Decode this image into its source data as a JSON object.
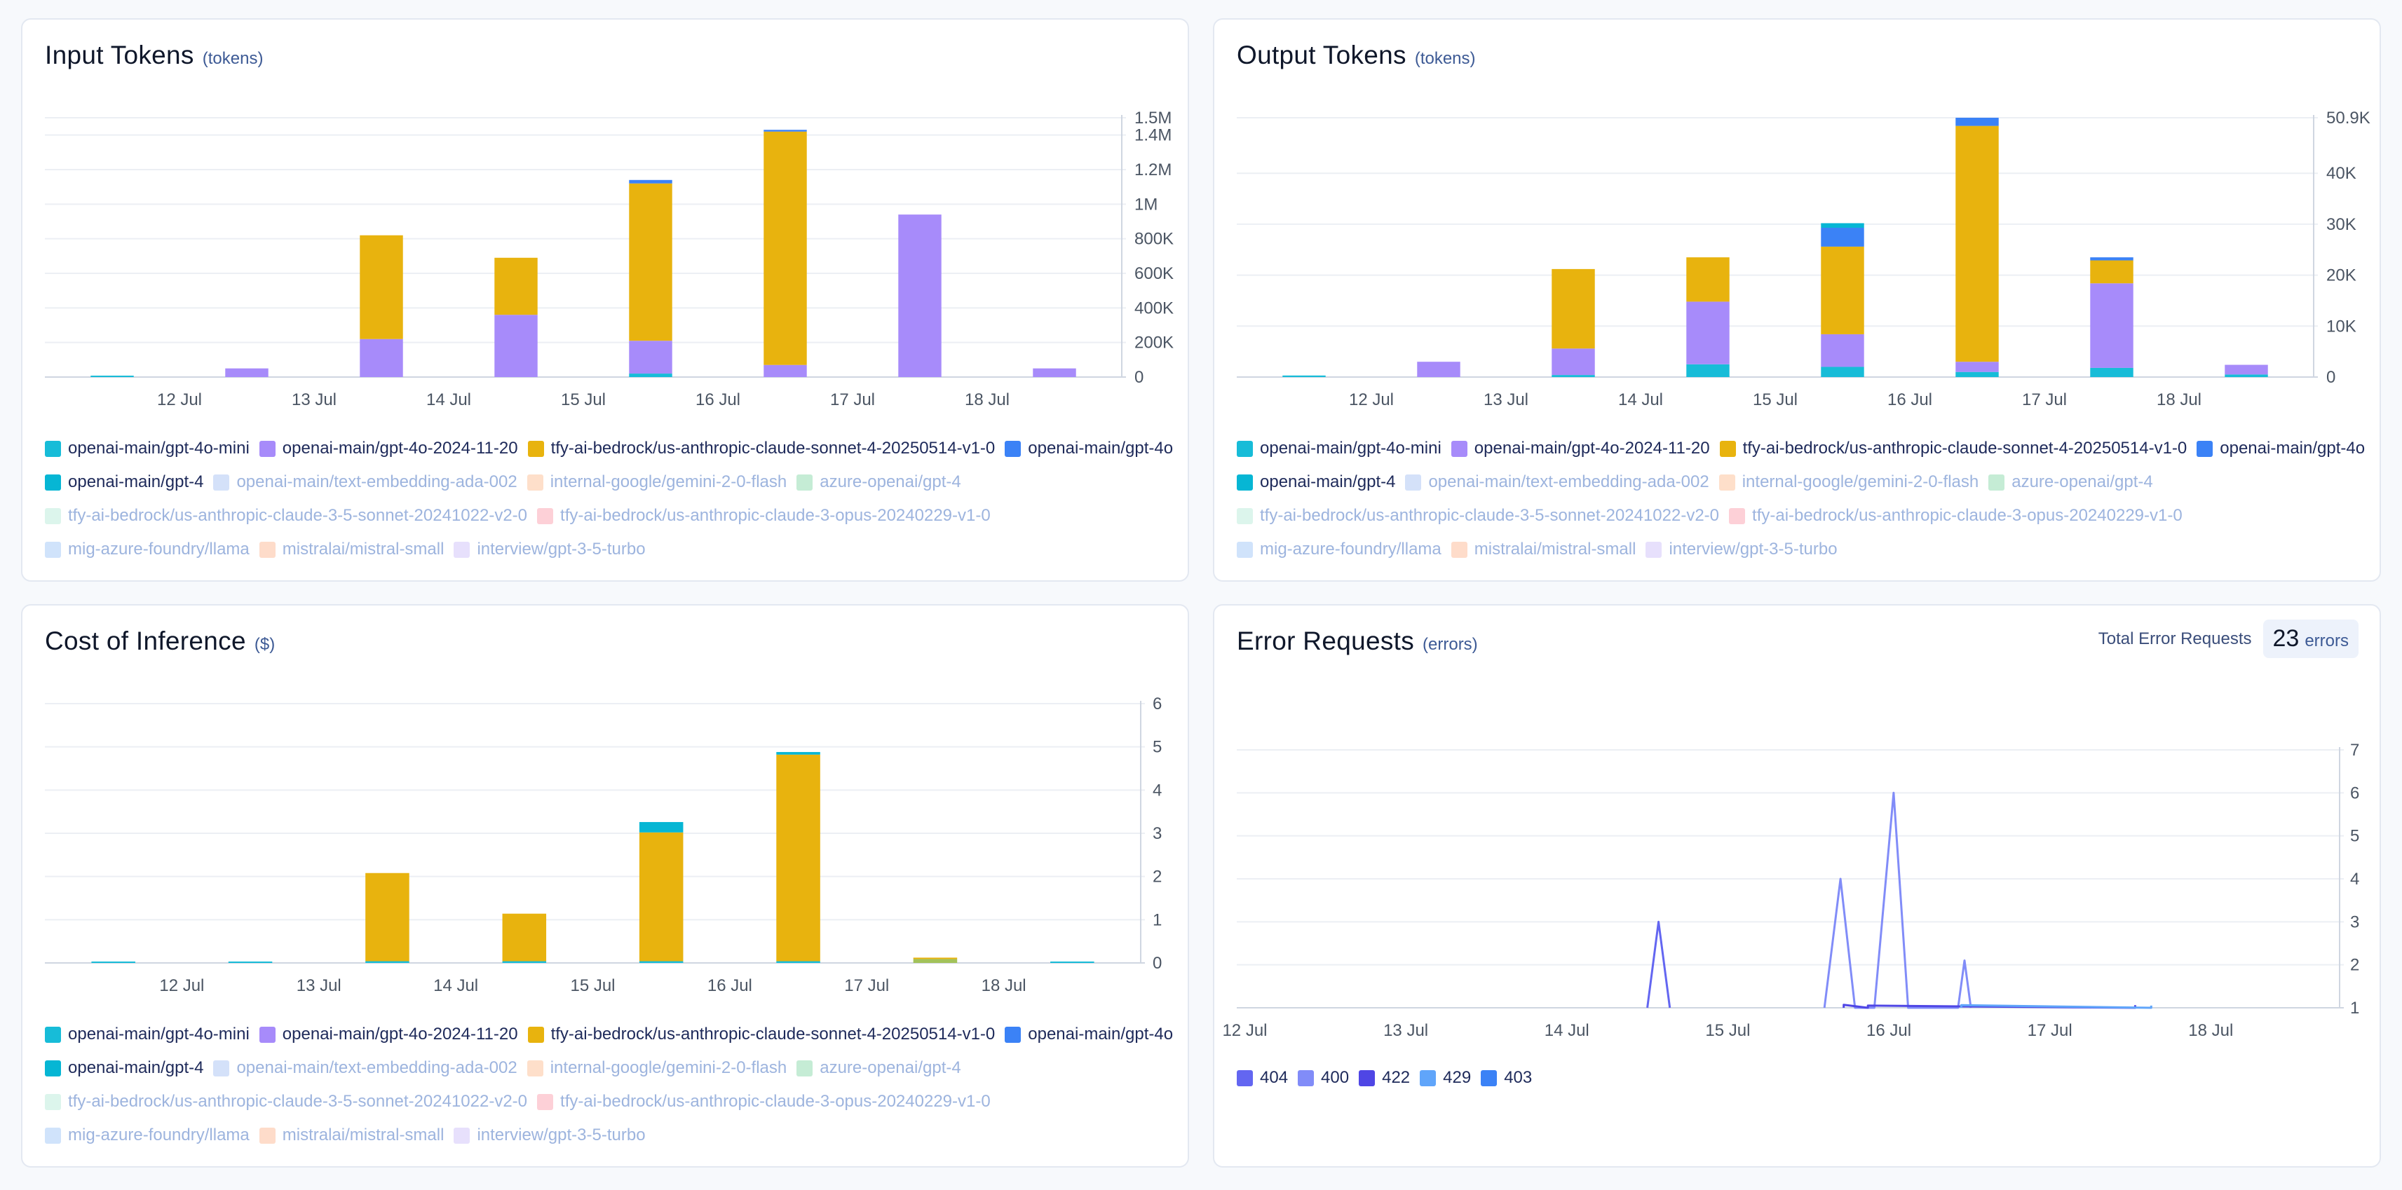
{
  "colors": {
    "cyan": "#17bcd8",
    "purple": "#a78bfa",
    "gold": "#e8b30e",
    "blue": "#3b82f6",
    "teal": "#06b6d4",
    "lime": "#a3c25a",
    "grid": "#eceff4",
    "axis": "#cfd6e1"
  },
  "legend_models": [
    {
      "label": "openai-main/gpt-4o-mini",
      "color": "#17bcd8",
      "active": true
    },
    {
      "label": "openai-main/gpt-4o-2024-11-20",
      "color": "#a78bfa",
      "active": true
    },
    {
      "label": "tfy-ai-bedrock/us-anthropic-claude-sonnet-4-20250514-v1-0",
      "color": "#e8b30e",
      "active": true
    },
    {
      "label": "openai-main/gpt-4o",
      "color": "#3b82f6",
      "active": true
    },
    {
      "label": "openai-main/gpt-4",
      "color": "#06b6d4",
      "active": true
    },
    {
      "label": "openai-main/text-embedding-ada-002",
      "color": "#93b4f0",
      "active": false
    },
    {
      "label": "internal-google/gemini-2-0-flash",
      "color": "#fdae7b",
      "active": false
    },
    {
      "label": "azure-openai/gpt-4",
      "color": "#6fcf97",
      "active": false
    },
    {
      "label": "tfy-ai-bedrock/us-anthropic-claude-3-5-sonnet-20241022-v2-0",
      "color": "#a8e6cf",
      "active": false
    },
    {
      "label": "tfy-ai-bedrock/us-anthropic-claude-3-opus-20240229-v1-0",
      "color": "#fb8a9a",
      "active": false
    },
    {
      "label": "mig-azure-foundry/llama",
      "color": "#8ab8f5",
      "active": false
    },
    {
      "label": "mistralai/mistral-small",
      "color": "#fca87a",
      "active": false
    },
    {
      "label": "interview/gpt-3-5-turbo",
      "color": "#c4b2f7",
      "active": false
    }
  ],
  "legend_errors": [
    {
      "label": "404",
      "color": "#6366f1",
      "active": true
    },
    {
      "label": "400",
      "color": "#818cf8",
      "active": true
    },
    {
      "label": "422",
      "color": "#4f46e5",
      "active": true
    },
    {
      "label": "429",
      "color": "#60a5fa",
      "active": true
    },
    {
      "label": "403",
      "color": "#3b82f6",
      "active": true
    }
  ],
  "cards": {
    "input": {
      "title": "Input Tokens",
      "unit": "(tokens)"
    },
    "output": {
      "title": "Output Tokens",
      "unit": "(tokens)"
    },
    "cost": {
      "title": "Cost of Inference",
      "unit": "($)"
    },
    "errors": {
      "title": "Error Requests",
      "unit": "(errors)",
      "total_label": "Total Error Requests",
      "total_value": "23",
      "total_unit": "errors"
    }
  },
  "chart_data": [
    {
      "id": "input",
      "type": "bar",
      "stacked": true,
      "title": "Input Tokens",
      "unit": "(tokens)",
      "x_ticks": [
        "12 Jul",
        "13 Jul",
        "14 Jul",
        "15 Jul",
        "16 Jul",
        "17 Jul",
        "18 Jul"
      ],
      "y_ticks": [
        {
          "v": 0,
          "label": "0"
        },
        {
          "v": 200000,
          "label": "200K"
        },
        {
          "v": 400000,
          "label": "400K"
        },
        {
          "v": 600000,
          "label": "600K"
        },
        {
          "v": 800000,
          "label": "800K"
        },
        {
          "v": 1000000,
          "label": "1M"
        },
        {
          "v": 1200000,
          "label": "1.2M"
        },
        {
          "v": 1400000,
          "label": "1.4M"
        },
        {
          "v": 1500000,
          "label": "1.5M"
        }
      ],
      "ylim": [
        0,
        1500000
      ],
      "bars": [
        {
          "x": 11.5,
          "segments": [
            {
              "color": "#17bcd8",
              "value": 6000
            }
          ]
        },
        {
          "x": 12.5,
          "segments": [
            {
              "color": "#a78bfa",
              "value": 50000
            }
          ]
        },
        {
          "x": 13.5,
          "segments": [
            {
              "color": "#a78bfa",
              "value": 220000
            },
            {
              "color": "#e8b30e",
              "value": 600000
            }
          ]
        },
        {
          "x": 14.5,
          "segments": [
            {
              "color": "#a78bfa",
              "value": 360000
            },
            {
              "color": "#e8b30e",
              "value": 330000
            }
          ]
        },
        {
          "x": 15.5,
          "segments": [
            {
              "color": "#17bcd8",
              "value": 20000
            },
            {
              "color": "#a78bfa",
              "value": 190000
            },
            {
              "color": "#e8b30e",
              "value": 910000
            },
            {
              "color": "#3b82f6",
              "value": 20000
            }
          ]
        },
        {
          "x": 16.5,
          "segments": [
            {
              "color": "#a78bfa",
              "value": 70000
            },
            {
              "color": "#e8b30e",
              "value": 1350000
            },
            {
              "color": "#3b82f6",
              "value": 10000
            }
          ]
        },
        {
          "x": 17.5,
          "segments": [
            {
              "color": "#a78bfa",
              "value": 940000
            }
          ]
        },
        {
          "x": 18.5,
          "segments": [
            {
              "color": "#a78bfa",
              "value": 50000
            }
          ]
        }
      ]
    },
    {
      "id": "output",
      "type": "bar",
      "stacked": true,
      "title": "Output Tokens",
      "unit": "(tokens)",
      "x_ticks": [
        "12 Jul",
        "13 Jul",
        "14 Jul",
        "15 Jul",
        "16 Jul",
        "17 Jul",
        "18 Jul"
      ],
      "y_ticks": [
        {
          "v": 0,
          "label": "0"
        },
        {
          "v": 10000,
          "label": "10K"
        },
        {
          "v": 20000,
          "label": "20K"
        },
        {
          "v": 30000,
          "label": "30K"
        },
        {
          "v": 40000,
          "label": "40K"
        },
        {
          "v": 50900,
          "label": "50.9K"
        }
      ],
      "ylim": [
        0,
        50900
      ],
      "bars": [
        {
          "x": 11.5,
          "segments": [
            {
              "color": "#17bcd8",
              "value": 300
            }
          ]
        },
        {
          "x": 12.5,
          "segments": [
            {
              "color": "#a78bfa",
              "value": 3000
            }
          ]
        },
        {
          "x": 13.5,
          "segments": [
            {
              "color": "#17bcd8",
              "value": 400
            },
            {
              "color": "#a78bfa",
              "value": 5200
            },
            {
              "color": "#e8b30e",
              "value": 15600
            }
          ]
        },
        {
          "x": 14.5,
          "segments": [
            {
              "color": "#17bcd8",
              "value": 2500
            },
            {
              "color": "#a78bfa",
              "value": 12300
            },
            {
              "color": "#e8b30e",
              "value": 8700
            }
          ]
        },
        {
          "x": 15.5,
          "segments": [
            {
              "color": "#17bcd8",
              "value": 2000
            },
            {
              "color": "#a78bfa",
              "value": 6400
            },
            {
              "color": "#e8b30e",
              "value": 17200
            },
            {
              "color": "#3b82f6",
              "value": 3700
            },
            {
              "color": "#06b6d4",
              "value": 900
            }
          ]
        },
        {
          "x": 16.5,
          "segments": [
            {
              "color": "#17bcd8",
              "value": 1000
            },
            {
              "color": "#a78bfa",
              "value": 2000
            },
            {
              "color": "#e8b30e",
              "value": 46300
            },
            {
              "color": "#3b82f6",
              "value": 1600
            }
          ]
        },
        {
          "x": 17.5,
          "segments": [
            {
              "color": "#17bcd8",
              "value": 1800
            },
            {
              "color": "#a78bfa",
              "value": 16600
            },
            {
              "color": "#e8b30e",
              "value": 4500
            },
            {
              "color": "#3b82f6",
              "value": 600
            }
          ]
        },
        {
          "x": 18.5,
          "segments": [
            {
              "color": "#17bcd8",
              "value": 500
            },
            {
              "color": "#a78bfa",
              "value": 1900
            }
          ]
        }
      ]
    },
    {
      "id": "cost",
      "type": "bar",
      "stacked": true,
      "title": "Cost of Inference",
      "unit": "($)",
      "x_ticks": [
        "12 Jul",
        "13 Jul",
        "14 Jul",
        "15 Jul",
        "16 Jul",
        "17 Jul",
        "18 Jul"
      ],
      "y_ticks": [
        {
          "v": 0,
          "label": "0"
        },
        {
          "v": 1,
          "label": "1"
        },
        {
          "v": 2,
          "label": "2"
        },
        {
          "v": 3,
          "label": "3"
        },
        {
          "v": 4,
          "label": "4"
        },
        {
          "v": 5,
          "label": "5"
        },
        {
          "v": 6,
          "label": "6"
        }
      ],
      "ylim": [
        0,
        6
      ],
      "bars": [
        {
          "x": 11.5,
          "segments": [
            {
              "color": "#17bcd8",
              "value": 0.03
            }
          ]
        },
        {
          "x": 12.5,
          "segments": [
            {
              "color": "#17bcd8",
              "value": 0.03
            }
          ]
        },
        {
          "x": 13.5,
          "segments": [
            {
              "color": "#17bcd8",
              "value": 0.04
            },
            {
              "color": "#e8b30e",
              "value": 2.04
            }
          ]
        },
        {
          "x": 14.5,
          "segments": [
            {
              "color": "#17bcd8",
              "value": 0.04
            },
            {
              "color": "#e8b30e",
              "value": 1.1
            }
          ]
        },
        {
          "x": 15.5,
          "segments": [
            {
              "color": "#17bcd8",
              "value": 0.04
            },
            {
              "color": "#e8b30e",
              "value": 2.98
            },
            {
              "color": "#06b6d4",
              "value": 0.24
            }
          ]
        },
        {
          "x": 16.5,
          "segments": [
            {
              "color": "#17bcd8",
              "value": 0.04
            },
            {
              "color": "#e8b30e",
              "value": 4.78
            },
            {
              "color": "#06b6d4",
              "value": 0.06
            }
          ]
        },
        {
          "x": 17.5,
          "segments": [
            {
              "color": "#a3c25a",
              "value": 0.09
            },
            {
              "color": "#e8b30e",
              "value": 0.03
            }
          ]
        },
        {
          "x": 18.5,
          "segments": [
            {
              "color": "#17bcd8",
              "value": 0.03
            }
          ]
        }
      ]
    },
    {
      "id": "errors",
      "type": "line",
      "title": "Error Requests",
      "unit": "(errors)",
      "x_ticks": [
        "12 Jul",
        "13 Jul",
        "14 Jul",
        "15 Jul",
        "16 Jul",
        "17 Jul",
        "18 Jul"
      ],
      "x_range": [
        11.95,
        18.8
      ],
      "y_ticks": [
        {
          "v": 1,
          "label": "1"
        },
        {
          "v": 2,
          "label": "2"
        },
        {
          "v": 3,
          "label": "3"
        },
        {
          "v": 4,
          "label": "4"
        },
        {
          "v": 5,
          "label": "5"
        },
        {
          "v": 6,
          "label": "6"
        },
        {
          "v": 7,
          "label": "7"
        }
      ],
      "ylim": [
        1,
        7
      ],
      "total_errors": 23,
      "series": [
        {
          "name": "404",
          "color": "#6366f1",
          "points": [
            [
              14.5,
              1
            ],
            [
              14.57,
              3
            ],
            [
              14.64,
              1
            ]
          ]
        },
        {
          "name": "400",
          "color": "#818cf8",
          "points": [
            [
              15.6,
              1
            ],
            [
              15.7,
              4
            ],
            [
              15.79,
              1
            ],
            [
              15.91,
              1
            ],
            [
              16.03,
              6
            ],
            [
              16.12,
              1
            ],
            [
              16.43,
              1
            ],
            [
              16.47,
              2.1
            ],
            [
              16.51,
              1
            ]
          ]
        },
        {
          "name": "422",
          "color": "#4f46e5",
          "points": [
            [
              15.72,
              1
            ],
            [
              15.72,
              1.07
            ],
            [
              15.87,
              1
            ],
            [
              15.87,
              1.05
            ],
            [
              17.53,
              1
            ],
            [
              17.53,
              1.06
            ]
          ]
        },
        {
          "name": "429",
          "color": "#60a5fa",
          "points": [
            [
              16.45,
              1
            ],
            [
              16.45,
              1.06
            ],
            [
              17.63,
              1
            ],
            [
              17.63,
              1.05
            ]
          ]
        },
        {
          "name": "403",
          "color": "#3b82f6",
          "points": []
        }
      ]
    }
  ]
}
